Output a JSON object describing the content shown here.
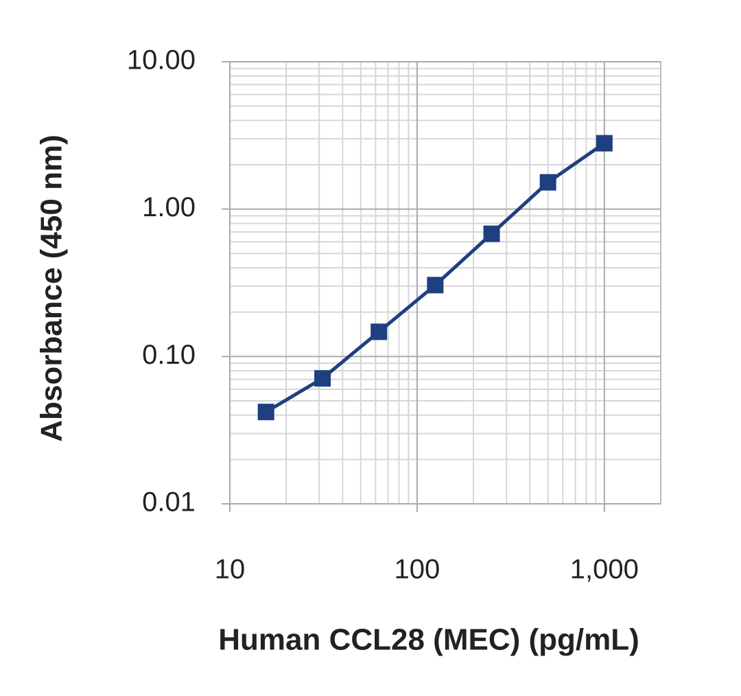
{
  "chart_data": {
    "type": "line",
    "x_label": "Human CCL28 (MEC) (pg/mL)",
    "y_label": "Absorbance (450 nm)",
    "x": [
      15.6,
      31.25,
      62.5,
      125,
      250,
      500,
      1000
    ],
    "series": [
      {
        "name": "CCL28",
        "color": "#1f3f7f",
        "values": [
          0.042,
          0.071,
          0.147,
          0.305,
          0.68,
          1.52,
          2.8
        ]
      }
    ],
    "xscale": "log",
    "yscale": "log",
    "xlim": [
      10,
      2000
    ],
    "ylim": [
      0.01,
      10
    ],
    "xticks": [
      10,
      100,
      {
        "value": 1000,
        "label": "1,000"
      }
    ],
    "yticks": [
      {
        "value": 0.01,
        "label": "0.01"
      },
      {
        "value": 0.1,
        "label": "0.10"
      },
      {
        "value": 1,
        "label": "1.00"
      },
      {
        "value": 10,
        "label": "10.00"
      }
    ],
    "grid": true,
    "minor_grid": true,
    "marker": "square"
  }
}
